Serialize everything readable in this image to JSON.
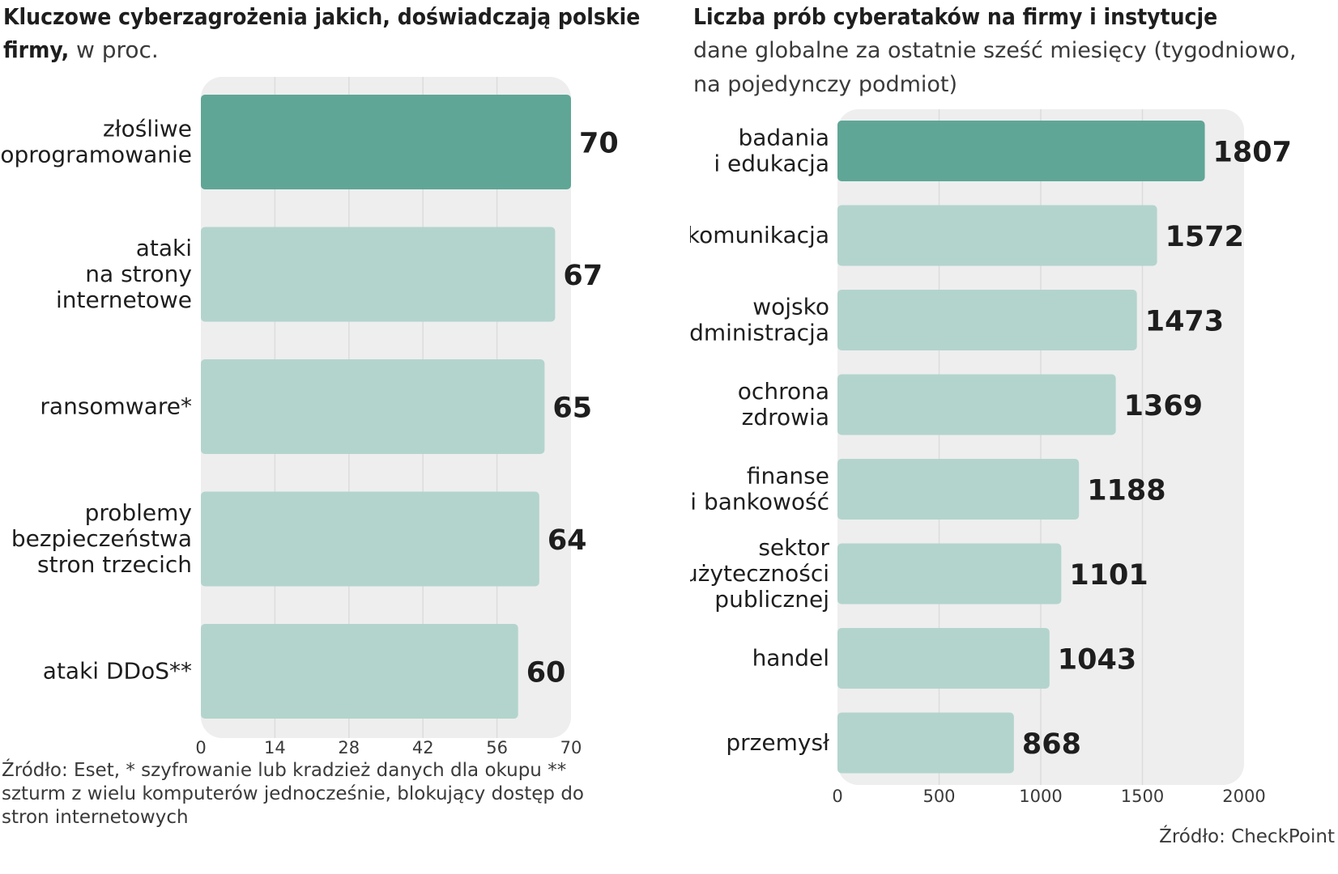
{
  "left_chart": {
    "title": "Kluczowe cyberzagrożenia jakich, doświadczają polskie firmy,",
    "title_unit": "w proc.",
    "source": "Źródło: Eset, * szyfrowanie lub kradzież danych dla okupu ** szturm z wielu komputerów jednocześnie, blokujący dostęp do stron internetowych"
  },
  "right_chart": {
    "title": "Liczba prób cyberataków na firmy i instytucje",
    "subtitle": "dane globalne za ostatnie sześć miesięcy (tygodniowo, na pojedynczy podmiot)",
    "source": "Źródło: CheckPoint"
  },
  "colors": {
    "highlight_bar": "#5fa696",
    "bar": "#b3d4cd",
    "plot_background": "#eeeeee",
    "grid": "#dcdcdc",
    "text": "#1e1e1e"
  },
  "chart_data": [
    {
      "type": "bar",
      "orientation": "horizontal",
      "title": "Kluczowe cyberzagrożenia jakich, doświadczają polskie firmy, w proc.",
      "categories": [
        [
          "złośliwe",
          "oprogramowanie"
        ],
        [
          "ataki",
          "na strony",
          "internetowe"
        ],
        [
          "ransomware*"
        ],
        [
          "problemy",
          "bezpieczeństwa",
          "stron trzecich"
        ],
        [
          "ataki DDoS**"
        ]
      ],
      "values": [
        70,
        67,
        65,
        64,
        60
      ],
      "highlight_index": 0,
      "xlim": [
        0,
        70
      ],
      "xticks": [
        0,
        14,
        28,
        42,
        56,
        70
      ],
      "grid": true,
      "data_labels": true
    },
    {
      "type": "bar",
      "orientation": "horizontal",
      "title": "Liczba prób cyberataków na firmy i instytucje",
      "subtitle": "dane globalne za ostatnie sześć miesięcy (tygodniowo, na pojedynczy podmiot)",
      "categories": [
        [
          "badania",
          "i edukacja"
        ],
        [
          "komunikacja"
        ],
        [
          "wojsko",
          "i administracja"
        ],
        [
          "ochrona",
          "zdrowia"
        ],
        [
          "finanse",
          "i bankowość"
        ],
        [
          "sektor",
          "użyteczności",
          "publicznej"
        ],
        [
          "handel"
        ],
        [
          "przemysł"
        ]
      ],
      "values": [
        1807,
        1572,
        1473,
        1369,
        1188,
        1101,
        1043,
        868
      ],
      "highlight_index": 0,
      "xlim": [
        0,
        2000
      ],
      "xticks": [
        0,
        500,
        1000,
        1500,
        2000
      ],
      "grid": true,
      "data_labels": true
    }
  ]
}
